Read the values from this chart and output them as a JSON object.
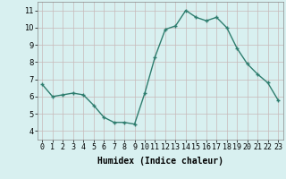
{
  "x": [
    0,
    1,
    2,
    3,
    4,
    5,
    6,
    7,
    8,
    9,
    10,
    11,
    12,
    13,
    14,
    15,
    16,
    17,
    18,
    19,
    20,
    21,
    22,
    23
  ],
  "y": [
    6.7,
    6.0,
    6.1,
    6.2,
    6.1,
    5.5,
    4.8,
    4.5,
    4.5,
    4.4,
    6.2,
    8.3,
    9.9,
    10.1,
    11.0,
    10.6,
    10.4,
    10.6,
    10.0,
    8.8,
    7.9,
    7.3,
    6.8,
    5.8
  ],
  "xlabel": "Humidex (Indice chaleur)",
  "xlim": [
    -0.5,
    23.5
  ],
  "ylim": [
    3.5,
    11.5
  ],
  "yticks": [
    4,
    5,
    6,
    7,
    8,
    9,
    10,
    11
  ],
  "xtick_labels": [
    "0",
    "1",
    "2",
    "3",
    "4",
    "5",
    "6",
    "7",
    "8",
    "9",
    "10",
    "11",
    "12",
    "13",
    "14",
    "15",
    "16",
    "17",
    "18",
    "19",
    "20",
    "21",
    "22",
    "23"
  ],
  "line_color": "#2e7d6e",
  "marker": "+",
  "bg_color": "#d8f0f0",
  "grid_color": "#c8b8b8",
  "xlabel_fontsize": 7,
  "tick_fontsize": 6,
  "line_width": 1.0
}
